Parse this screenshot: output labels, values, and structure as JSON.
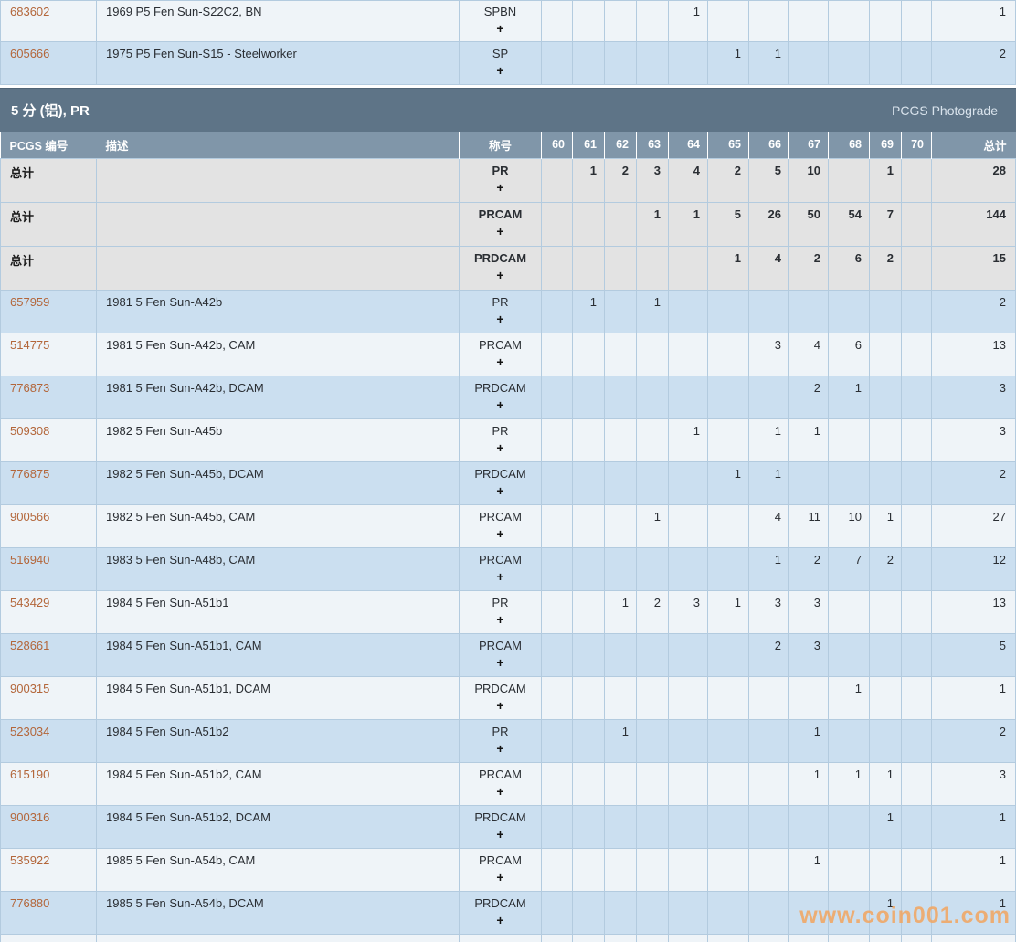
{
  "section": {
    "title": "5 分 (铝), PR",
    "photograde_label": "PCGS Photograde"
  },
  "watermark": {
    "text": "www.coin001.com"
  },
  "grades": [
    "60",
    "61",
    "62",
    "63",
    "64",
    "65",
    "66",
    "67",
    "68",
    "69",
    "70"
  ],
  "table_headers": {
    "pcgs": "PCGS 编号",
    "desc": "描述",
    "designation": "称号",
    "total": "总计"
  },
  "top_rows": [
    {
      "kind": "data",
      "pcgs": "683602",
      "desc": "1969 P5 Fen Sun-S22C2, BN",
      "designation": "SPBN",
      "expand": "+",
      "values": {
        "64": "1"
      },
      "total": "1",
      "bg": "white"
    },
    {
      "kind": "data",
      "pcgs": "605666",
      "desc": "1975 P5 Fen Sun-S15 - Steelworker",
      "designation": "SP",
      "expand": "+",
      "values": {
        "65": "1",
        "66": "1"
      },
      "total": "2",
      "bg": "blue"
    }
  ],
  "rows": [
    {
      "kind": "total",
      "label": "总计",
      "designation": "PR",
      "expand": "+",
      "values": {
        "61": "1",
        "62": "2",
        "63": "3",
        "64": "4",
        "65": "2",
        "66": "5",
        "67": "10",
        "69": "1"
      },
      "total": "28"
    },
    {
      "kind": "total",
      "label": "总计",
      "designation": "PRCAM",
      "expand": "+",
      "values": {
        "63": "1",
        "64": "1",
        "65": "5",
        "66": "26",
        "67": "50",
        "68": "54",
        "69": "7"
      },
      "total": "144"
    },
    {
      "kind": "total",
      "label": "总计",
      "designation": "PRDCAM",
      "expand": "+",
      "values": {
        "65": "1",
        "66": "4",
        "67": "2",
        "68": "6",
        "69": "2"
      },
      "total": "15"
    },
    {
      "kind": "data",
      "pcgs": "657959",
      "desc": "1981 5 Fen Sun-A42b",
      "designation": "PR",
      "expand": "+",
      "values": {
        "61": "1",
        "63": "1"
      },
      "total": "2",
      "bg": "blue"
    },
    {
      "kind": "data",
      "pcgs": "514775",
      "desc": "1981 5 Fen Sun-A42b, CAM",
      "designation": "PRCAM",
      "expand": "+",
      "values": {
        "66": "3",
        "67": "4",
        "68": "6"
      },
      "total": "13",
      "bg": "white"
    },
    {
      "kind": "data",
      "pcgs": "776873",
      "desc": "1981 5 Fen Sun-A42b, DCAM",
      "designation": "PRDCAM",
      "expand": "+",
      "values": {
        "67": "2",
        "68": "1"
      },
      "total": "3",
      "bg": "blue"
    },
    {
      "kind": "data",
      "pcgs": "509308",
      "desc": "1982 5 Fen Sun-A45b",
      "designation": "PR",
      "expand": "+",
      "values": {
        "64": "1",
        "66": "1",
        "67": "1"
      },
      "total": "3",
      "bg": "white"
    },
    {
      "kind": "data",
      "pcgs": "776875",
      "desc": "1982 5 Fen Sun-A45b, DCAM",
      "designation": "PRDCAM",
      "expand": "+",
      "values": {
        "65": "1",
        "66": "1"
      },
      "total": "2",
      "bg": "blue"
    },
    {
      "kind": "data",
      "pcgs": "900566",
      "desc": "1982 5 Fen Sun-A45b, CAM",
      "designation": "PRCAM",
      "expand": "+",
      "values": {
        "63": "1",
        "66": "4",
        "67": "11",
        "68": "10",
        "69": "1"
      },
      "total": "27",
      "bg": "white"
    },
    {
      "kind": "data",
      "pcgs": "516940",
      "desc": "1983 5 Fen Sun-A48b, CAM",
      "designation": "PRCAM",
      "expand": "+",
      "values": {
        "66": "1",
        "67": "2",
        "68": "7",
        "69": "2"
      },
      "total": "12",
      "bg": "blue"
    },
    {
      "kind": "data",
      "pcgs": "543429",
      "desc": "1984 5 Fen Sun-A51b1",
      "designation": "PR",
      "expand": "+",
      "values": {
        "62": "1",
        "63": "2",
        "64": "3",
        "65": "1",
        "66": "3",
        "67": "3"
      },
      "total": "13",
      "bg": "white"
    },
    {
      "kind": "data",
      "pcgs": "528661",
      "desc": "1984 5 Fen Sun-A51b1, CAM",
      "designation": "PRCAM",
      "expand": "+",
      "values": {
        "66": "2",
        "67": "3"
      },
      "total": "5",
      "bg": "blue"
    },
    {
      "kind": "data",
      "pcgs": "900315",
      "desc": "1984 5 Fen Sun-A51b1, DCAM",
      "designation": "PRDCAM",
      "expand": "+",
      "values": {
        "68": "1"
      },
      "total": "1",
      "bg": "white"
    },
    {
      "kind": "data",
      "pcgs": "523034",
      "desc": "1984 5 Fen Sun-A51b2",
      "designation": "PR",
      "expand": "+",
      "values": {
        "62": "1",
        "67": "1"
      },
      "total": "2",
      "bg": "blue"
    },
    {
      "kind": "data",
      "pcgs": "615190",
      "desc": "1984 5 Fen Sun-A51b2, CAM",
      "designation": "PRCAM",
      "expand": "+",
      "values": {
        "67": "1",
        "68": "1",
        "69": "1"
      },
      "total": "3",
      "bg": "white"
    },
    {
      "kind": "data",
      "pcgs": "900316",
      "desc": "1984 5 Fen Sun-A51b2, DCAM",
      "designation": "PRDCAM",
      "expand": "+",
      "values": {
        "69": "1"
      },
      "total": "1",
      "bg": "blue"
    },
    {
      "kind": "data",
      "pcgs": "535922",
      "desc": "1985 5 Fen Sun-A54b, CAM",
      "designation": "PRCAM",
      "expand": "+",
      "values": {
        "67": "1"
      },
      "total": "1",
      "bg": "white"
    },
    {
      "kind": "data",
      "pcgs": "776880",
      "desc": "1985 5 Fen Sun-A54b, DCAM",
      "designation": "PRDCAM",
      "expand": "+",
      "values": {
        "69": "1"
      },
      "total": "1",
      "bg": "blue"
    }
  ],
  "colors": {
    "section_band": "#5e7487",
    "header_row": "#8096a9",
    "row_blue": "#cbdff0",
    "row_white": "#eff4f8",
    "row_total_gray": "#e3e3e3",
    "cell_border": "#b3cbdf",
    "pcgs_link": "#b3663a",
    "watermark_orange": "#f2a55f"
  }
}
